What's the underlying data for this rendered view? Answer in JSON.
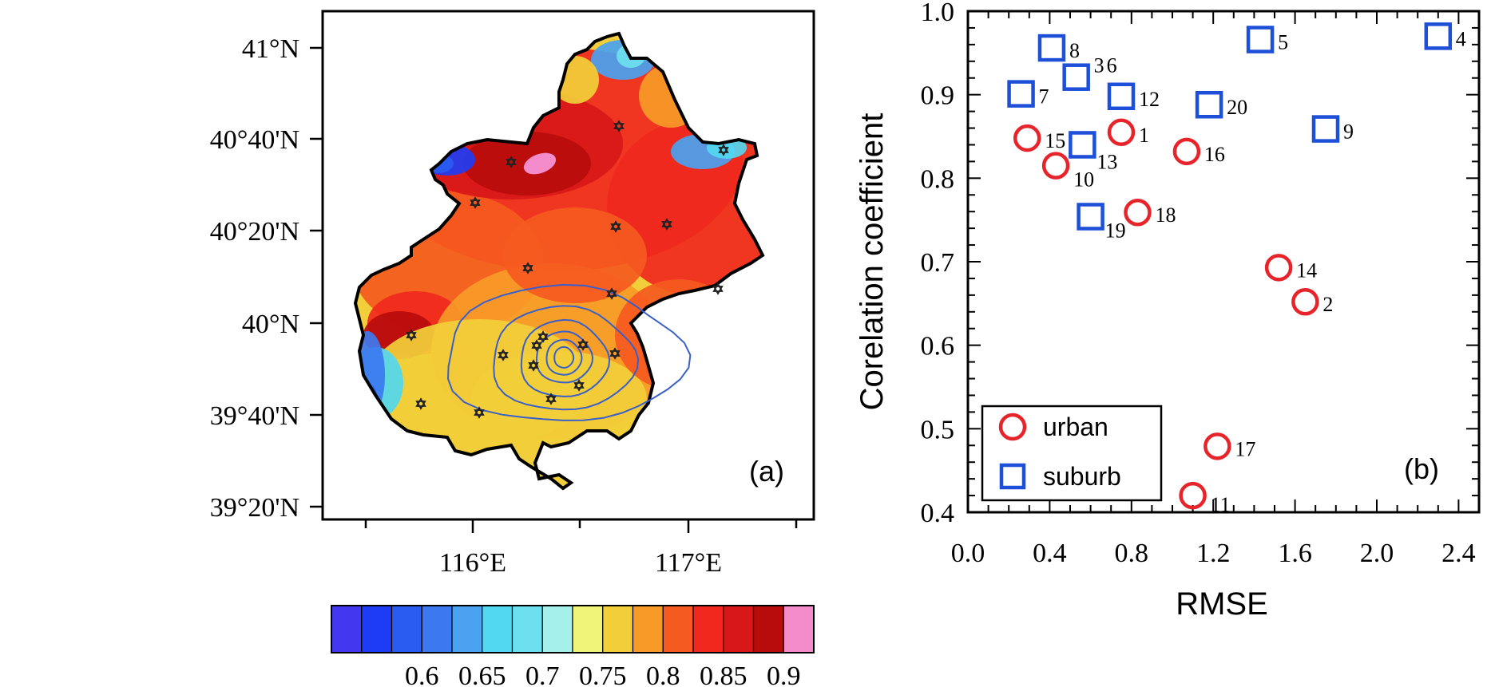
{
  "colors": {
    "urban": "#e8242b",
    "suburb": "#1e4fd8",
    "contour": "#3a5fc8",
    "station": "#222222",
    "palette": [
      "#4338f0",
      "#1e3cf5",
      "#2a5cf2",
      "#3c78f0",
      "#4aa2f0",
      "#52d8f0",
      "#6ce0ee",
      "#a6f0ec",
      "#f0f57a",
      "#f2cf3a",
      "#f79a28",
      "#f55a20",
      "#f0281e",
      "#d81818",
      "#b80c0c",
      "#f48ccc"
    ]
  },
  "map": {
    "panel_label": "(a)",
    "lat_labels": [
      "41°N",
      "40°40'N",
      "40°20'N",
      "40°N",
      "39°40'N",
      "39°20'N"
    ],
    "lon_labels": [
      "116°E",
      "117°E"
    ]
  },
  "colorbar": {
    "labels": [
      "0.6",
      "0.65",
      "0.7",
      "0.75",
      "0.8",
      "0.85",
      "0.9"
    ]
  },
  "chart_data": {
    "type": "scatter",
    "panel_label": "(b)",
    "xlabel": "RMSE",
    "ylabel": "Corelation coefficient",
    "xlim": [
      0.0,
      2.5
    ],
    "ylim": [
      0.4,
      1.0
    ],
    "xticks": [
      "0.0",
      "0.4",
      "0.8",
      "1.2",
      "1.6",
      "2.0",
      "2.4"
    ],
    "yticks": [
      "0.4",
      "0.5",
      "0.6",
      "0.7",
      "0.8",
      "0.9",
      "1.0"
    ],
    "legend": {
      "position": "bottom-left",
      "entries": [
        "urban",
        "suburb"
      ]
    },
    "series": [
      {
        "name": "urban",
        "marker": "circle",
        "points": [
          {
            "label": "1",
            "x": 0.75,
            "y": 0.855
          },
          {
            "label": "15",
            "x": 0.29,
            "y": 0.848
          },
          {
            "label": "16",
            "x": 1.07,
            "y": 0.832
          },
          {
            "label": "10",
            "x": 0.43,
            "y": 0.815
          },
          {
            "label": "18",
            "x": 0.83,
            "y": 0.759
          },
          {
            "label": "14",
            "x": 1.52,
            "y": 0.693
          },
          {
            "label": "2",
            "x": 1.65,
            "y": 0.652
          },
          {
            "label": "17",
            "x": 1.22,
            "y": 0.479
          },
          {
            "label": "11",
            "x": 1.1,
            "y": 0.42
          }
        ]
      },
      {
        "name": "suburb",
        "marker": "square",
        "points": [
          {
            "label": "4",
            "x": 2.3,
            "y": 0.97
          },
          {
            "label": "5",
            "x": 1.43,
            "y": 0.966
          },
          {
            "label": "8",
            "x": 0.41,
            "y": 0.956
          },
          {
            "label": "3",
            "x": 0.53,
            "y": 0.921
          },
          {
            "label": "6",
            "x": 0.53,
            "y": 0.921
          },
          {
            "label": "7",
            "x": 0.26,
            "y": 0.901
          },
          {
            "label": "12",
            "x": 0.75,
            "y": 0.898
          },
          {
            "label": "20",
            "x": 1.18,
            "y": 0.888
          },
          {
            "label": "9",
            "x": 1.75,
            "y": 0.859
          },
          {
            "label": "13",
            "x": 0.56,
            "y": 0.84
          },
          {
            "label": "19",
            "x": 0.6,
            "y": 0.754
          }
        ]
      }
    ]
  }
}
